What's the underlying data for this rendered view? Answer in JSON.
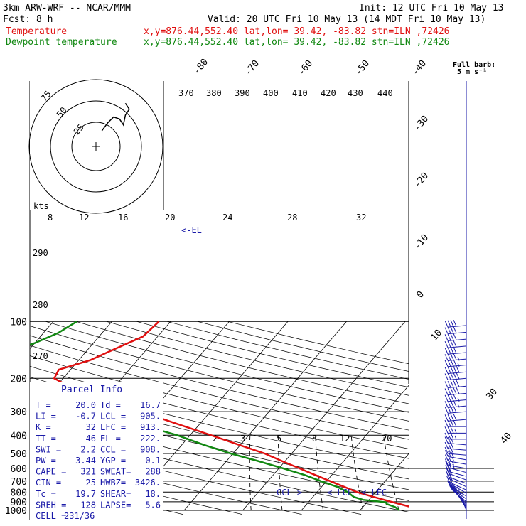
{
  "header": {
    "model": "3km ARW-WRF -- NCAR/MMM",
    "init": "Init: 12 UTC Fri 10 May 13",
    "fcst": "Fcst:    8 h",
    "valid": "Valid: 20 UTC Fri 10 May 13 (14 MDT Fri 10 May 13)",
    "temp_label": "Temperature",
    "temp_loc": "x,y=876.44,552.40   lat,lon= 39.42, -83.82  stn=ILN ,72426",
    "dew_label": "Dewpoint temperature",
    "dew_loc": "x,y=876.44,552.40   lat,lon= 39.42, -83.82  stn=ILN ,72426",
    "wind_key_title": "Full barb:",
    "wind_key_value": "5 m s⁻¹"
  },
  "colors": {
    "temperature": "#e01010",
    "dewpoint": "#118811",
    "barbs": "#1a1aa8",
    "grid": "#000000"
  },
  "chart_data": {
    "type": "line",
    "pressure_ticks": [
      "100",
      "200",
      "300",
      "400",
      "500",
      "600",
      "700",
      "800",
      "900",
      "1000"
    ],
    "pressure_values": [
      100,
      200,
      300,
      400,
      500,
      600,
      700,
      800,
      900,
      1000
    ],
    "isotherm_labels": [
      "-80",
      "-70",
      "-60",
      "-50",
      "-40",
      "-30",
      "-20",
      "-10",
      "0",
      "10",
      "30",
      "40"
    ],
    "theta_labels": [
      "370",
      "380",
      "390",
      "400",
      "410",
      "420",
      "430",
      "440"
    ],
    "mixing_ratio_labels": [
      "2",
      "3",
      "5",
      "8",
      "12",
      "20"
    ],
    "hodograph_speed_labels": [
      "kts",
      "8",
      "12",
      "16",
      "20",
      "24",
      "28",
      "32"
    ],
    "hodograph_ring_labels": [
      "75",
      "50",
      "25"
    ],
    "dry_adiabat_labels": [
      "290",
      "280",
      "270"
    ],
    "markers": {
      "el": "<-EL",
      "lcl": "<-LCL",
      "lfc": "<-LFC",
      "ccl": "CCL->"
    },
    "series": [
      {
        "name": "Temperature",
        "points": [
          {
            "p": 1000,
            "t": 20.0
          },
          {
            "p": 960,
            "t": 18.2
          },
          {
            "p": 925,
            "t": 15.8
          },
          {
            "p": 900,
            "t": 14.0
          },
          {
            "p": 850,
            "t": 10.4
          },
          {
            "p": 800,
            "t": 6.8
          },
          {
            "p": 750,
            "t": 3.8
          },
          {
            "p": 700,
            "t": 0.6
          },
          {
            "p": 650,
            "t": -2.8
          },
          {
            "p": 600,
            "t": -6.4
          },
          {
            "p": 550,
            "t": -10.4
          },
          {
            "p": 500,
            "t": -14.6
          },
          {
            "p": 450,
            "t": -20.2
          },
          {
            "p": 400,
            "t": -26.4
          },
          {
            "p": 350,
            "t": -33.6
          },
          {
            "p": 300,
            "t": -41.8
          },
          {
            "p": 250,
            "t": -51.5
          },
          {
            "p": 222,
            "t": -57.5
          },
          {
            "p": 200,
            "t": -61.5
          },
          {
            "p": 180,
            "t": -62.0
          },
          {
            "p": 160,
            "t": -58.0
          },
          {
            "p": 140,
            "t": -55.5
          },
          {
            "p": 120,
            "t": -52.5
          },
          {
            "p": 100,
            "t": -52.0
          }
        ]
      },
      {
        "name": "Dewpoint temperature",
        "points": [
          {
            "p": 1000,
            "t": 16.7
          },
          {
            "p": 960,
            "t": 15.5
          },
          {
            "p": 925,
            "t": 13.6
          },
          {
            "p": 905,
            "t": 13.2
          },
          {
            "p": 880,
            "t": 9.0
          },
          {
            "p": 850,
            "t": 7.0
          },
          {
            "p": 800,
            "t": 5.2
          },
          {
            "p": 750,
            "t": 2.6
          },
          {
            "p": 700,
            "t": -1.0
          },
          {
            "p": 650,
            "t": -4.6
          },
          {
            "p": 600,
            "t": -9.2
          },
          {
            "p": 550,
            "t": -14.4
          },
          {
            "p": 500,
            "t": -20.4
          },
          {
            "p": 450,
            "t": -26.2
          },
          {
            "p": 400,
            "t": -32.2
          },
          {
            "p": 350,
            "t": -40.2
          },
          {
            "p": 300,
            "t": -48.5
          },
          {
            "p": 250,
            "t": -58.5
          },
          {
            "p": 200,
            "t": -70.0
          },
          {
            "p": 170,
            "t": -75.0
          },
          {
            "p": 150,
            "t": -74.0
          },
          {
            "p": 130,
            "t": -70.0
          },
          {
            "p": 115,
            "t": -67.5
          },
          {
            "p": 100,
            "t": -66.0
          }
        ]
      }
    ],
    "wind_profile": [
      {
        "p": 1000,
        "dir": 200,
        "spd": 5
      },
      {
        "p": 980,
        "dir": 210,
        "spd": 6
      },
      {
        "p": 960,
        "dir": 215,
        "spd": 7
      },
      {
        "p": 940,
        "dir": 220,
        "spd": 8
      },
      {
        "p": 920,
        "dir": 225,
        "spd": 8
      },
      {
        "p": 900,
        "dir": 230,
        "spd": 9
      },
      {
        "p": 870,
        "dir": 235,
        "spd": 9
      },
      {
        "p": 840,
        "dir": 240,
        "spd": 10
      },
      {
        "p": 810,
        "dir": 240,
        "spd": 10
      },
      {
        "p": 780,
        "dir": 245,
        "spd": 10
      },
      {
        "p": 750,
        "dir": 245,
        "spd": 11
      },
      {
        "p": 720,
        "dir": 250,
        "spd": 11
      },
      {
        "p": 690,
        "dir": 250,
        "spd": 12
      },
      {
        "p": 660,
        "dir": 255,
        "spd": 12
      },
      {
        "p": 630,
        "dir": 255,
        "spd": 13
      },
      {
        "p": 600,
        "dir": 260,
        "spd": 13
      },
      {
        "p": 570,
        "dir": 260,
        "spd": 14
      },
      {
        "p": 540,
        "dir": 260,
        "spd": 15
      },
      {
        "p": 510,
        "dir": 265,
        "spd": 16
      },
      {
        "p": 480,
        "dir": 265,
        "spd": 17
      },
      {
        "p": 450,
        "dir": 265,
        "spd": 17
      },
      {
        "p": 420,
        "dir": 270,
        "spd": 18
      },
      {
        "p": 390,
        "dir": 270,
        "spd": 19
      },
      {
        "p": 360,
        "dir": 270,
        "spd": 20
      },
      {
        "p": 330,
        "dir": 275,
        "spd": 21
      },
      {
        "p": 300,
        "dir": 275,
        "spd": 22
      },
      {
        "p": 280,
        "dir": 275,
        "spd": 23
      },
      {
        "p": 260,
        "dir": 275,
        "spd": 24
      },
      {
        "p": 240,
        "dir": 275,
        "spd": 25
      },
      {
        "p": 220,
        "dir": 275,
        "spd": 26
      },
      {
        "p": 200,
        "dir": 275,
        "spd": 26
      },
      {
        "p": 185,
        "dir": 275,
        "spd": 25
      },
      {
        "p": 170,
        "dir": 275,
        "spd": 24
      },
      {
        "p": 158,
        "dir": 275,
        "spd": 23
      },
      {
        "p": 146,
        "dir": 275,
        "spd": 22
      },
      {
        "p": 135,
        "dir": 275,
        "spd": 22
      },
      {
        "p": 124,
        "dir": 275,
        "spd": 21
      },
      {
        "p": 114,
        "dir": 275,
        "spd": 20
      },
      {
        "p": 105,
        "dir": 275,
        "spd": 20
      }
    ],
    "hodograph_trace": [
      [
        3,
        8
      ],
      [
        6,
        12
      ],
      [
        9,
        15
      ],
      [
        12,
        14
      ],
      [
        14,
        11
      ],
      [
        15,
        16
      ],
      [
        17,
        19
      ],
      [
        15,
        22
      ]
    ]
  },
  "parcel_info": {
    "title": "Parcel Info",
    "rows": [
      {
        "k1": "T   =",
        "v1": "20.0",
        "k2": "Td  =",
        "v2": "16.7"
      },
      {
        "k1": "LI  =",
        "v1": "-0.7",
        "k2": "LCL =",
        "v2": "905."
      },
      {
        "k1": "K   =",
        "v1": "32",
        "k2": "LFC =",
        "v2": "913."
      },
      {
        "k1": "TT  =",
        "v1": "46",
        "k2": "EL  =",
        "v2": "222."
      },
      {
        "k1": "SWI =",
        "v1": "2.2",
        "k2": "CCL =",
        "v2": "908."
      },
      {
        "k1": "PW  =",
        "v1": "3.44",
        "k2": "YGP =",
        "v2": "0.1"
      },
      {
        "k1": "CAPE =",
        "v1": "321",
        "k2": "SWEAT=",
        "v2": "288"
      },
      {
        "k1": "CIN  =",
        "v1": "-25",
        "k2": "HWBZ=",
        "v2": "3426."
      },
      {
        "k1": "Tc   =",
        "v1": "19.7",
        "k2": "SHEAR=",
        "v2": "18."
      },
      {
        "k1": "SREH =",
        "v1": "128",
        "k2": "LAPSE=",
        "v2": "5.6"
      },
      {
        "k1": "CELL =",
        "v1": "231/36",
        "k2": "",
        "v2": ""
      }
    ]
  }
}
